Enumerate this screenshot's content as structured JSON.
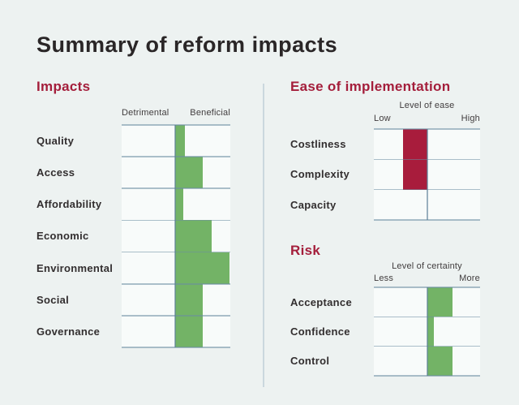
{
  "page": {
    "title": "Summary of reform impacts"
  },
  "colors": {
    "background": "#edf2f1",
    "section_heading": "#a41e3b",
    "green_bar": "#73b366",
    "crimson_bar": "#a81c3c",
    "gridline": "#a7bfcb",
    "divider": "#cbd8de",
    "title_text": "#2a2627",
    "label_text": "#322e2f"
  },
  "chart_data": [
    {
      "type": "bar",
      "title": "Impacts",
      "orientation": "diverging-horizontal",
      "axis_labels": {
        "left": "Detrimental",
        "right": "Beneficial"
      },
      "categories": [
        "Quality",
        "Access",
        "Affordability",
        "Economic",
        "Environmental",
        "Social",
        "Governance"
      ],
      "values": [
        0.18,
        0.5,
        0.15,
        0.66,
        0.99,
        0.5,
        0.5
      ],
      "axis_range": [
        -1,
        1
      ],
      "bar_color": "#73b366",
      "grid": true,
      "value_scale": "fraction of half-axis; positive = Beneficial side"
    },
    {
      "type": "bar",
      "title": "Ease of implementation",
      "orientation": "diverging-horizontal",
      "axis_title": "Level of ease",
      "axis_labels": {
        "left": "Low",
        "right": "High"
      },
      "categories": [
        "Costliness",
        "Complexity",
        "Capacity"
      ],
      "values": [
        -0.45,
        -0.45,
        0
      ],
      "axis_range": [
        -1,
        1
      ],
      "bar_color": "#a81c3c",
      "grid": true,
      "value_scale": "fraction of half-axis; negative = Low side"
    },
    {
      "type": "bar",
      "title": "Risk",
      "orientation": "diverging-horizontal",
      "axis_title": "Level of certainty",
      "axis_labels": {
        "left": "Less",
        "right": "More"
      },
      "categories": [
        "Acceptance",
        "Confidence",
        "Control"
      ],
      "values": [
        0.48,
        0.12,
        0.48
      ],
      "axis_range": [
        -1,
        1
      ],
      "bar_color": "#73b366",
      "grid": true,
      "value_scale": "fraction of half-axis; positive = More side"
    }
  ]
}
